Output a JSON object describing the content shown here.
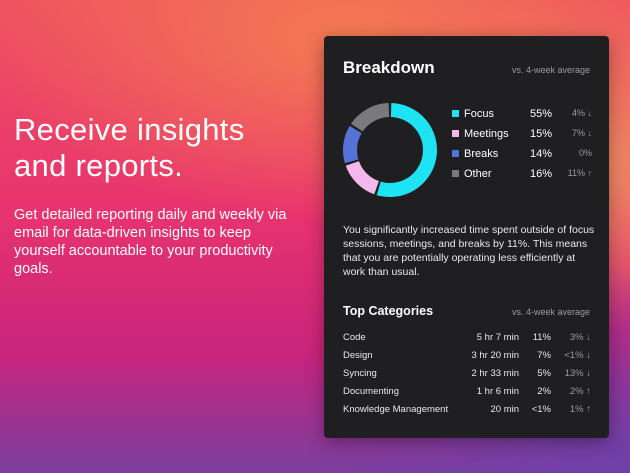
{
  "hero": {
    "title_line1": "Receive insights",
    "title_line2": "and reports.",
    "description": "Get detailed reporting daily and weekly via email for data-driven insights to keep yourself accountable to your productivity goals."
  },
  "breakdown": {
    "title": "Breakdown",
    "comparison": "vs. 4-week average",
    "items": [
      {
        "label": "Focus",
        "percent": "55%",
        "value": 55,
        "delta": "4% ↓",
        "color": "#1ee3f2"
      },
      {
        "label": "Meetings",
        "percent": "15%",
        "value": 15,
        "delta": "7% ↓",
        "color": "#f4b8ec"
      },
      {
        "label": "Breaks",
        "percent": "14%",
        "value": 14,
        "delta": "0%",
        "color": "#5573d6"
      },
      {
        "label": "Other",
        "percent": "16%",
        "value": 16,
        "delta": "11% ↑",
        "color": "#7a7a7e"
      }
    ],
    "summary": "You significantly increased time spent outside of focus sessions, meetings, and breaks by 11%. This means that you are potentially operating less efficiently at work than usual."
  },
  "top_categories": {
    "title": "Top Categories",
    "comparison": "vs. 4-week average",
    "rows": [
      {
        "name": "Code",
        "time": "5 hr 7 min",
        "percent": "11%",
        "delta": "3% ↓"
      },
      {
        "name": "Design",
        "time": "3 hr 20 min",
        "percent": "7%",
        "delta": "<1% ↓"
      },
      {
        "name": "Syncing",
        "time": "2 hr 33 min",
        "percent": "5%",
        "delta": "13% ↓"
      },
      {
        "name": "Documenting",
        "time": "1 hr 6 min",
        "percent": "2%",
        "delta": "2% ↑"
      },
      {
        "name": "Knowledge Management",
        "time": "20 min",
        "percent": "<1%",
        "delta": "1% ↑"
      }
    ]
  }
}
